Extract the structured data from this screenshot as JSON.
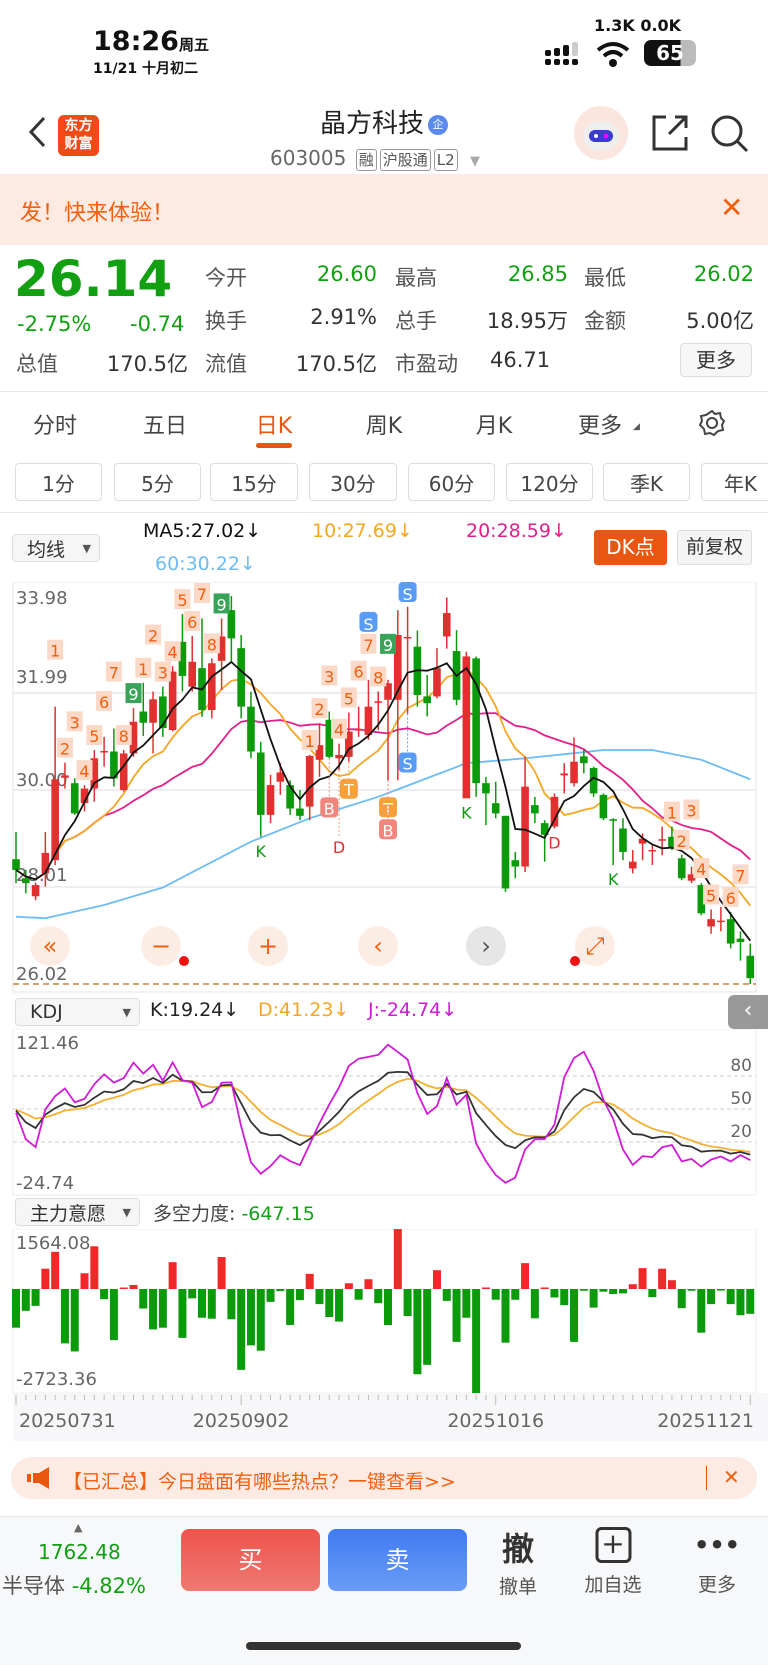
{
  "status": {
    "time": "18:26",
    "weekday": "周五",
    "date": "11/21 十月初二",
    "net_speed": "1.3K 0.0K",
    "battery": "65"
  },
  "header": {
    "logo": "东方财富",
    "title": "晶方科技",
    "badge": "企",
    "code": "603005",
    "tags": [
      "融",
      "沪股通",
      "L2"
    ]
  },
  "promo": {
    "text": "发！快来体验！"
  },
  "quote": {
    "price": "26.14",
    "pct": "-2.75%",
    "chg": "-0.74",
    "rows": [
      [
        {
          "l": "今开",
          "v": "26.60",
          "c": "green"
        },
        {
          "l": "最高",
          "v": "26.85",
          "c": "green"
        },
        {
          "l": "最低",
          "v": "26.02",
          "c": "green"
        }
      ],
      [
        {
          "l": "换手",
          "v": "2.91%",
          "c": "dark"
        },
        {
          "l": "总手",
          "v": "18.95万",
          "c": "dark"
        },
        {
          "l": "金额",
          "v": "5.00亿",
          "c": "dark"
        }
      ],
      [
        {
          "l": "总值",
          "v": "170.5亿"
        },
        {
          "l": "流值",
          "v": "170.5亿"
        },
        {
          "l": "市盈动",
          "v": "46.71"
        }
      ]
    ],
    "more": "更多"
  },
  "tabs": [
    "分时",
    "五日",
    "日K",
    "周K",
    "月K",
    "更多"
  ],
  "active_tab": 2,
  "intervals": [
    "1分",
    "5分",
    "15分",
    "30分",
    "60分",
    "120分",
    "季K",
    "年K"
  ],
  "ma_bar": {
    "select": "均线",
    "ma5": "MA5:27.02↓",
    "ma10": "10:27.69↓",
    "ma20": "20:28.59↓",
    "ma60": "60:30.22↓",
    "dk": "DK点",
    "adjust": "前复权"
  },
  "colors": {
    "up": "#e03030",
    "down": "#0a9a0a",
    "ma5": "#111111",
    "ma10": "#f5a623",
    "ma20": "#e0208a",
    "ma60": "#6cbcf5",
    "accent": "#f0600f"
  },
  "chart_data": {
    "type": "candlestick",
    "y_labels": [
      "33.98",
      "31.99",
      "30.00",
      "28.01",
      "26.02"
    ],
    "ylim": [
      26.02,
      33.98
    ],
    "candles": [
      [
        28.58,
        29.14,
        28.09,
        28.36
      ],
      [
        28.19,
        28.36,
        27.88,
        28.09
      ],
      [
        27.82,
        28.1,
        27.74,
        28.05
      ],
      [
        28.29,
        29.14,
        28.02,
        28.71
      ],
      [
        28.56,
        31.71,
        28.46,
        30.22
      ],
      [
        30.25,
        30.56,
        30.03,
        30.3
      ],
      [
        30.14,
        30.24,
        29.49,
        29.52
      ],
      [
        29.73,
        30.1,
        29.56,
        30.03
      ],
      [
        30.03,
        30.82,
        29.76,
        30.65
      ],
      [
        30.78,
        31.09,
        30.48,
        30.8
      ],
      [
        30.79,
        31.26,
        30.07,
        30.24
      ],
      [
        30.0,
        30.82,
        29.97,
        30.75
      ],
      [
        30.75,
        31.68,
        30.68,
        31.4
      ],
      [
        31.61,
        32.2,
        31.11,
        31.38
      ],
      [
        31.38,
        32.02,
        30.75,
        31.86
      ],
      [
        31.92,
        32.12,
        31.09,
        31.27
      ],
      [
        31.23,
        32.54,
        31.2,
        32.43
      ],
      [
        33.04,
        33.61,
        32.02,
        32.34
      ],
      [
        32.12,
        33.16,
        32.02,
        32.63
      ],
      [
        32.5,
        33.52,
        31.5,
        31.64
      ],
      [
        31.64,
        32.7,
        31.47,
        32.6
      ],
      [
        32.65,
        33.52,
        32.05,
        33.15
      ],
      [
        33.69,
        33.98,
        32.63,
        33.11
      ],
      [
        32.91,
        33.18,
        31.47,
        31.71
      ],
      [
        31.71,
        32.02,
        30.65,
        30.79
      ],
      [
        30.77,
        30.99,
        29.04,
        29.49
      ],
      [
        29.49,
        30.31,
        29.32,
        30.1
      ],
      [
        30.17,
        30.55,
        29.9,
        30.36
      ],
      [
        30.1,
        30.2,
        29.49,
        29.62
      ],
      [
        29.62,
        30.0,
        29.38,
        29.47
      ],
      [
        29.66,
        30.72,
        29.38,
        30.7
      ],
      [
        30.62,
        31.37,
        30.27,
        30.92
      ],
      [
        31.44,
        31.61,
        30.65,
        30.68
      ],
      [
        30.65,
        30.95,
        30.41,
        30.72
      ],
      [
        30.68,
        31.59,
        30.58,
        31.2
      ],
      [
        31.22,
        31.71,
        31.09,
        31.25
      ],
      [
        31.13,
        32.26,
        31.03,
        31.71
      ],
      [
        31.8,
        32.02,
        31.23,
        31.82
      ],
      [
        31.85,
        32.26,
        30.2,
        32.19
      ],
      [
        31.85,
        33.69,
        30.2,
        33.18
      ],
      [
        33.12,
        33.76,
        31.57,
        33.14
      ],
      [
        32.94,
        33.27,
        31.71,
        31.95
      ],
      [
        31.92,
        32.36,
        31.51,
        31.78
      ],
      [
        31.92,
        32.91,
        31.88,
        32.5
      ],
      [
        33.15,
        33.95,
        32.9,
        33.63
      ],
      [
        32.85,
        33.28,
        31.74,
        31.85
      ],
      [
        29.83,
        32.84,
        29.83,
        32.74
      ],
      [
        32.7,
        32.74,
        29.86,
        30.14
      ],
      [
        30.14,
        30.27,
        29.28,
        29.93
      ],
      [
        29.73,
        30.17,
        29.42,
        29.52
      ],
      [
        29.47,
        29.47,
        27.91,
        27.98
      ],
      [
        28.56,
        28.73,
        28.19,
        28.43
      ],
      [
        28.43,
        30.68,
        28.32,
        30.07
      ],
      [
        29.69,
        29.86,
        29.32,
        29.52
      ],
      [
        29.32,
        29.38,
        28.53,
        29.08
      ],
      [
        29.25,
        29.93,
        29.21,
        29.86
      ],
      [
        30.3,
        30.55,
        29.93,
        30.34
      ],
      [
        30.14,
        31.08,
        30.07,
        30.58
      ],
      [
        30.69,
        30.82,
        30.34,
        30.55
      ],
      [
        30.45,
        30.48,
        29.86,
        29.93
      ],
      [
        29.9,
        29.93,
        29.38,
        29.42
      ],
      [
        29.4,
        29.42,
        28.46,
        29.38
      ],
      [
        29.21,
        29.42,
        28.56,
        28.73
      ],
      [
        28.39,
        28.77,
        28.29,
        28.53
      ],
      [
        28.9,
        29.11,
        28.56,
        29.0
      ],
      [
        28.75,
        28.9,
        28.46,
        28.77
      ],
      [
        28.97,
        29.25,
        28.66,
        28.99
      ],
      [
        29.04,
        29.25,
        28.77,
        28.8
      ],
      [
        28.6,
        28.67,
        28.15,
        28.19
      ],
      [
        28.14,
        28.43,
        28.09,
        28.27
      ],
      [
        28.05,
        28.09,
        27.43,
        27.47
      ],
      [
        27.2,
        27.55,
        27.05,
        27.35
      ],
      [
        27.3,
        27.6,
        27.1,
        27.32
      ],
      [
        27.35,
        27.5,
        26.75,
        26.85
      ],
      [
        26.95,
        27.1,
        26.5,
        26.88
      ],
      [
        26.6,
        26.85,
        26.02,
        26.14
      ]
    ],
    "ma60_points": [
      [
        0,
        27.4
      ],
      [
        3,
        27.37
      ],
      [
        9,
        27.64
      ],
      [
        15,
        28.0
      ],
      [
        24,
        28.94
      ],
      [
        30,
        29.42
      ],
      [
        37,
        29.86
      ],
      [
        46,
        30.55
      ],
      [
        52,
        30.65
      ],
      [
        60,
        30.82
      ],
      [
        65,
        30.82
      ],
      [
        70,
        30.62
      ],
      [
        75,
        30.22
      ]
    ],
    "signals": [
      [
        4,
        "1",
        "num"
      ],
      [
        5,
        "2",
        "num"
      ],
      [
        6,
        "3",
        "num"
      ],
      [
        7,
        "4",
        "num"
      ],
      [
        8,
        "5",
        "num"
      ],
      [
        9,
        "6",
        "num"
      ],
      [
        10,
        "7",
        "num"
      ],
      [
        11,
        "8",
        "num"
      ],
      [
        12,
        "9",
        "nine"
      ],
      [
        13,
        "1",
        "num"
      ],
      [
        14,
        "2",
        "num"
      ],
      [
        15,
        "3",
        "num"
      ],
      [
        16,
        "4",
        "num"
      ],
      [
        17,
        "5",
        "num"
      ],
      [
        18,
        "6",
        "num"
      ],
      [
        19,
        "7",
        "num"
      ],
      [
        20,
        "8",
        "num"
      ],
      [
        21,
        "9",
        "nine"
      ],
      [
        25,
        "K",
        "k"
      ],
      [
        30,
        "1",
        "num"
      ],
      [
        31,
        "2",
        "num"
      ],
      [
        32,
        "3",
        "num"
      ],
      [
        33,
        "4",
        "num"
      ],
      [
        34,
        "5",
        "num"
      ],
      [
        35,
        "6",
        "num"
      ],
      [
        36,
        "7",
        "num"
      ],
      [
        37,
        "8",
        "num"
      ],
      [
        38,
        "9",
        "nine"
      ],
      [
        36,
        "S",
        "s"
      ],
      [
        40,
        "S",
        "s"
      ],
      [
        46,
        "K",
        "k"
      ],
      [
        55,
        "D",
        "d"
      ],
      [
        61,
        "K",
        "k"
      ],
      [
        67,
        "1",
        "num"
      ],
      [
        68,
        "2",
        "num"
      ],
      [
        69,
        "3",
        "num"
      ],
      [
        70,
        "4",
        "num"
      ],
      [
        71,
        "5",
        "num"
      ],
      [
        73,
        "6",
        "num"
      ],
      [
        74,
        "7",
        "num"
      ]
    ],
    "bs_marks": [
      [
        32,
        "B",
        "b"
      ],
      [
        34,
        "T",
        "t"
      ],
      [
        38,
        "T",
        "t"
      ],
      [
        38,
        "B",
        "b"
      ],
      [
        40,
        "S",
        "s"
      ],
      [
        33,
        "D",
        "d"
      ]
    ],
    "x_labels": [
      [
        0,
        "20250731"
      ],
      [
        23,
        "20250902"
      ],
      [
        49,
        "20251016"
      ],
      [
        75,
        "20251121"
      ]
    ]
  },
  "controls": [
    "«",
    "−",
    "+",
    "‹",
    "›",
    "⤢"
  ],
  "kdj": {
    "select": "KDJ",
    "k": "K:19.24↓",
    "d": "D:41.23↓",
    "j": "J:-24.74↓",
    "top": "121.46",
    "bottom": "-24.74",
    "levels": [
      "80",
      "50",
      "20"
    ],
    "ylim": [
      -24.74,
      121.46
    ]
  },
  "force": {
    "select": "主力意愿",
    "label": "多空力度:",
    "value": "-647.15",
    "top": "1564.08",
    "bottom": "-2723.36",
    "ylim": [
      -2723.36,
      1564.08
    ],
    "values": [
      -1010,
      -570,
      -440,
      530,
      970,
      -1420,
      -1630,
      410,
      1115,
      -265,
      -1335,
      35,
      105,
      -510,
      -1055,
      -1010,
      700,
      -1275,
      -245,
      -750,
      -775,
      835,
      -790,
      -2110,
      -1470,
      -1610,
      -335,
      -55,
      -940,
      -290,
      395,
      -395,
      -730,
      -850,
      150,
      -280,
      255,
      -370,
      -940,
      1564.08,
      -705,
      -2225,
      -1980,
      490,
      -310,
      -1380,
      -750,
      -2723.36,
      15,
      -280,
      -1400,
      -280,
      675,
      -765,
      25,
      -220,
      -420,
      -1380,
      -45,
      -485,
      -70,
      -130,
      -115,
      125,
      545,
      -210,
      530,
      230,
      -500,
      -45,
      -1140,
      -395,
      -20,
      -395,
      -685,
      -647.15
    ]
  },
  "news": {
    "text": "【已汇总】今日盘面有哪些热点？一键查看>>"
  },
  "bottom": {
    "index_value": "1762.48",
    "index_name": "半导体",
    "index_pct": "-4.82%",
    "buy": "买",
    "sell": "卖",
    "cancel_icon": "撤",
    "cancel": "撤单",
    "watch": "加自选",
    "more": "更多"
  }
}
